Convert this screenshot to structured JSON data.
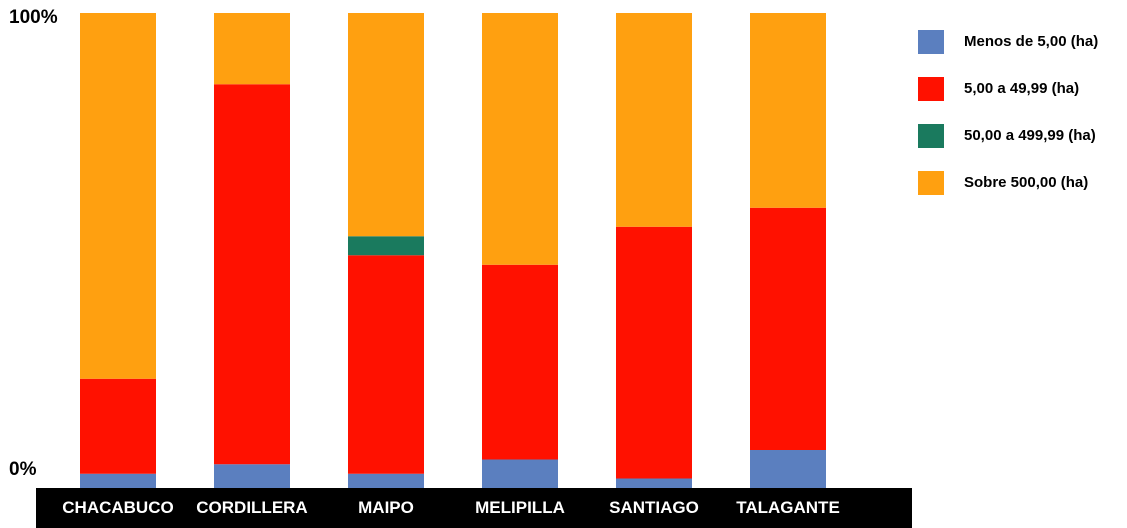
{
  "chart_data": {
    "type": "bar",
    "stacked": true,
    "normalized": true,
    "categories": [
      "CHACABUCO",
      "CORDILLERA",
      "MAIPO",
      "MELIPILLA",
      "SANTIAGO",
      "TALAGANTE"
    ],
    "series": [
      {
        "name": "Menos de 5,00 (ha)",
        "color": "#5B7FBF",
        "values": [
          3,
          5,
          3,
          6,
          2,
          8
        ]
      },
      {
        "name": "5,00 a 49,99 (ha)",
        "color": "#FF1100",
        "values": [
          20,
          80,
          46,
          41,
          53,
          51
        ]
      },
      {
        "name": "50,00 a 499,99 (ha)",
        "color": "#1A7A5E",
        "values": [
          0,
          0,
          4,
          0,
          0,
          0
        ]
      },
      {
        "name": "Sobre 500,00 (ha)",
        "color": "#FFA010",
        "values": [
          77,
          15,
          47,
          53,
          45,
          41
        ]
      }
    ],
    "y_tick_labels": {
      "top": "100%",
      "bottom": "0%"
    },
    "ylim": [
      0,
      100
    ],
    "grid": false,
    "legend_position": "right",
    "category_bar_color": "#000000"
  }
}
